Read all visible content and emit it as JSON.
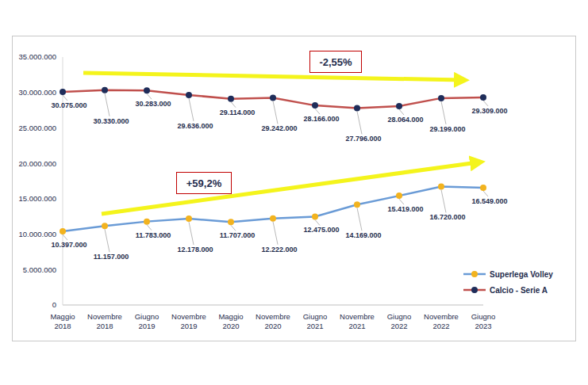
{
  "chart_data": {
    "type": "line",
    "categories": [
      "Maggio 2018",
      "Novembre 2018",
      "Giugno 2019",
      "Novembre 2019",
      "Maggio 2020",
      "Novembre 2020",
      "Giugno 2021",
      "Novembre 2021",
      "Giugno 2022",
      "Novembre 2022",
      "Giugno 2023"
    ],
    "series": [
      {
        "name": "Superlega Volley",
        "color": "#6a9bd6",
        "marker": "circle",
        "values": [
          10397000,
          11157000,
          11783000,
          12178000,
          11707000,
          12222000,
          12475000,
          14169000,
          15419000,
          16720000,
          16549000
        ],
        "value_labels": [
          "10.397.000",
          "11.157.000",
          "11.783.000",
          "12.178.000",
          "11.707.000",
          "12.222.000",
          "12.475.000",
          "14.169.000",
          "15.419.000",
          "16.720.000",
          "16.549.000"
        ]
      },
      {
        "name": "Calcio - Serie A",
        "color": "#c0504d",
        "marker": "circle",
        "values": [
          30075000,
          30330000,
          30283000,
          29636000,
          29114000,
          29242000,
          28166000,
          27796000,
          28064000,
          29199000,
          29309000
        ],
        "value_labels": [
          "30.075.000",
          "30.330.000",
          "30.283.000",
          "29.636.000",
          "29.114.000",
          "29.242.000",
          "28.166.000",
          "27.796.000",
          "28.064.000",
          "29.199.000",
          "29.309.000"
        ]
      }
    ],
    "ylim": [
      0,
      35000000
    ],
    "yticks": [
      0,
      {
        "value": 5000000,
        "label": "5.000.000"
      },
      {
        "value": 10000000,
        "label": "10.000.000"
      },
      {
        "value": 15000000,
        "label": "15.000.000"
      },
      {
        "value": 20000000,
        "label": "20.000.000"
      },
      {
        "value": 25000000,
        "label": "25.000.000"
      },
      {
        "value": 30000000,
        "label": "30.000.000"
      },
      {
        "value": 35000000,
        "label": "35.000.000"
      }
    ],
    "grid": false,
    "legend": "lower right",
    "data_labels": true,
    "annotations": [
      {
        "text": "-2,55%",
        "series": "Calcio - Serie A"
      },
      {
        "text": "+59,2%",
        "series": "Superlega Volley"
      }
    ]
  }
}
